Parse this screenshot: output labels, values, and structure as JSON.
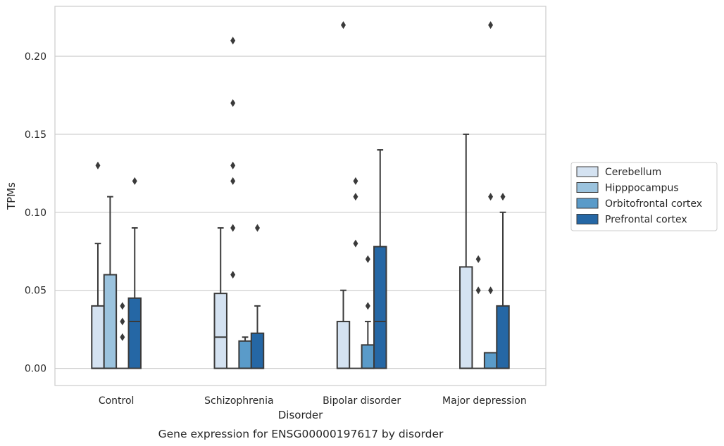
{
  "chart_data": {
    "type": "box",
    "caption": "Gene expression for ENSG00000197617 by disorder",
    "xlabel": "Disorder",
    "ylabel": "TPMs",
    "ylim": [
      -0.011,
      0.232
    ],
    "yticks": [
      0.0,
      0.05,
      0.1,
      0.15,
      0.2
    ],
    "ytick_labels": [
      "0.00",
      "0.05",
      "0.10",
      "0.15",
      "0.20"
    ],
    "grid": true,
    "legend_position": "right",
    "categories": [
      "Control",
      "Schizophrenia",
      "Bipolar disorder",
      "Major depression"
    ],
    "series": [
      {
        "name": "Cerebellum",
        "color": "#d4e2f1",
        "boxes": [
          {
            "q1": 0.0,
            "median": 0.0,
            "q3": 0.04,
            "whislo": 0.0,
            "whishi": 0.08,
            "fliers": [
              0.13
            ]
          },
          {
            "q1": 0.0,
            "median": 0.02,
            "q3": 0.048,
            "whislo": 0.0,
            "whishi": 0.09,
            "fliers": []
          },
          {
            "q1": 0.0,
            "median": 0.0,
            "q3": 0.03,
            "whislo": 0.0,
            "whishi": 0.05,
            "fliers": [
              0.22
            ]
          },
          {
            "q1": 0.0,
            "median": 0.0,
            "q3": 0.065,
            "whislo": 0.0,
            "whishi": 0.15,
            "fliers": []
          }
        ]
      },
      {
        "name": "Hipppocampus",
        "color": "#9bc3de",
        "boxes": [
          {
            "q1": 0.0,
            "median": 0.0,
            "q3": 0.06,
            "whislo": 0.0,
            "whishi": 0.11,
            "fliers": []
          },
          {
            "q1": 0.0,
            "median": 0.0,
            "q3": 0.0,
            "whislo": 0.0,
            "whishi": 0.0,
            "fliers": [
              0.06,
              0.09,
              0.12,
              0.13,
              0.17,
              0.21
            ]
          },
          {
            "q1": 0.0,
            "median": 0.0,
            "q3": 0.0,
            "whislo": 0.0,
            "whishi": 0.0,
            "fliers": [
              0.08,
              0.11,
              0.12
            ]
          },
          {
            "q1": 0.0,
            "median": 0.0,
            "q3": 0.0,
            "whislo": 0.0,
            "whishi": 0.0,
            "fliers": [
              0.05,
              0.07
            ]
          }
        ]
      },
      {
        "name": "Orbitofrontal cortex",
        "color": "#5a9bc9",
        "boxes": [
          {
            "q1": 0.0,
            "median": 0.0,
            "q3": 0.0,
            "whislo": 0.0,
            "whishi": 0.0,
            "fliers": [
              0.02,
              0.03,
              0.04
            ]
          },
          {
            "q1": 0.0,
            "median": 0.0,
            "q3": 0.0175,
            "whislo": 0.0,
            "whishi": 0.02,
            "fliers": []
          },
          {
            "q1": 0.0,
            "median": 0.0,
            "q3": 0.015,
            "whislo": 0.0,
            "whishi": 0.03,
            "fliers": [
              0.04,
              0.07
            ]
          },
          {
            "q1": 0.0,
            "median": 0.0,
            "q3": 0.01,
            "whislo": 0.0,
            "whishi": 0.01,
            "fliers": [
              0.05,
              0.11,
              0.22
            ]
          }
        ]
      },
      {
        "name": "Prefrontal cortex",
        "color": "#2567a5",
        "boxes": [
          {
            "q1": 0.0,
            "median": 0.03,
            "q3": 0.045,
            "whislo": 0.0,
            "whishi": 0.09,
            "fliers": [
              0.12
            ]
          },
          {
            "q1": 0.0,
            "median": 0.0,
            "q3": 0.0225,
            "whislo": 0.0,
            "whishi": 0.04,
            "fliers": [
              0.09
            ]
          },
          {
            "q1": 0.0,
            "median": 0.03,
            "q3": 0.078,
            "whislo": 0.0,
            "whishi": 0.14,
            "fliers": []
          },
          {
            "q1": 0.0,
            "median": 0.0,
            "q3": 0.04,
            "whislo": 0.0,
            "whishi": 0.1,
            "fliers": [
              0.11
            ]
          }
        ]
      }
    ]
  }
}
